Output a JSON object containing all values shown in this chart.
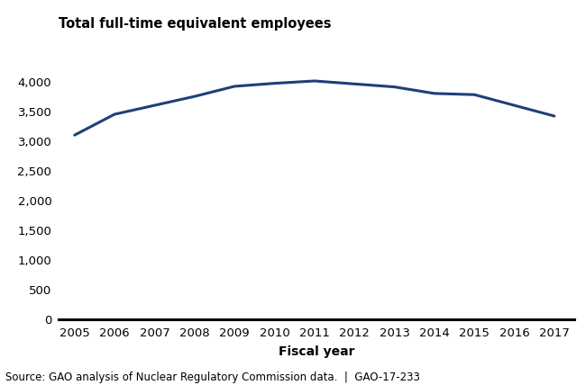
{
  "years": [
    2005,
    2006,
    2007,
    2008,
    2009,
    2010,
    2011,
    2012,
    2013,
    2014,
    2015,
    2016,
    2017
  ],
  "values": [
    3100,
    3450,
    3600,
    3750,
    3920,
    3970,
    4010,
    3960,
    3910,
    3800,
    3780,
    3600,
    3420
  ],
  "line_color": "#1F3F7A",
  "line_width": 2.2,
  "title": "Total full-time equivalent employees",
  "xlabel": "Fiscal year",
  "ylim": [
    0,
    4400
  ],
  "yticks": [
    0,
    500,
    1000,
    1500,
    2000,
    2500,
    3000,
    3500,
    4000
  ],
  "xlim": [
    2004.6,
    2017.5
  ],
  "source_text": "Source: GAO analysis of Nuclear Regulatory Commission data.  |  GAO-17-233",
  "title_fontsize": 10.5,
  "label_fontsize": 10,
  "tick_fontsize": 9.5,
  "source_fontsize": 8.5,
  "background_color": "#ffffff"
}
